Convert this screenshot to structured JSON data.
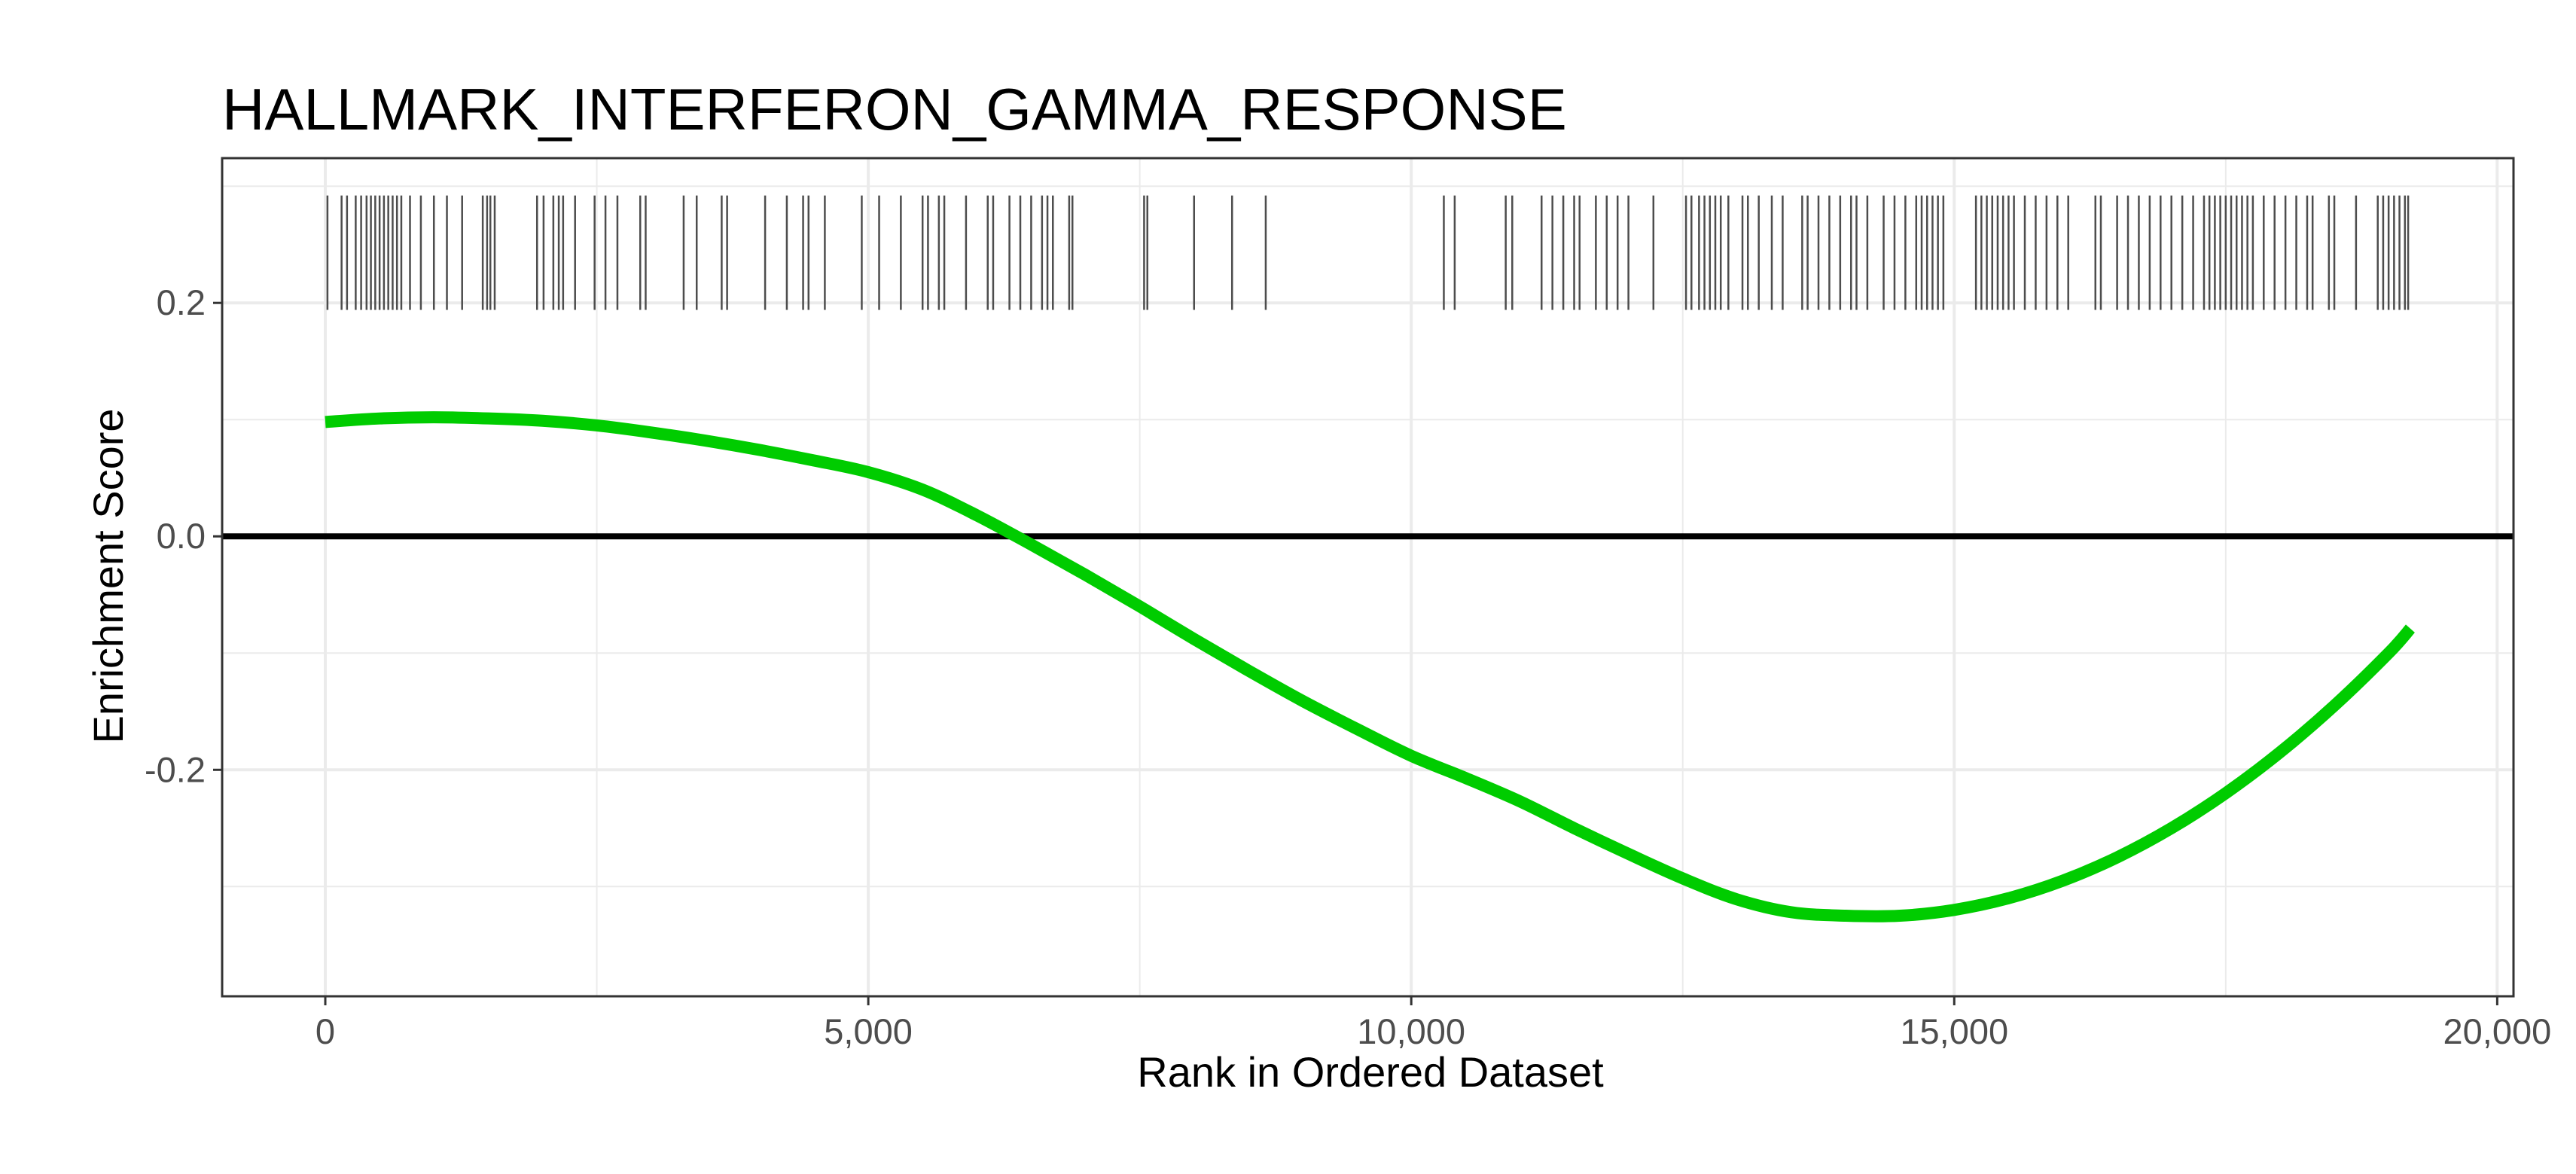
{
  "chart_data": {
    "type": "line",
    "title": "HALLMARK_INTERFERON_GAMMA_RESPONSE",
    "xlabel": "Rank in Ordered Dataset",
    "ylabel": "Enrichment Score",
    "xlim": [
      -950,
      20150
    ],
    "ylim": [
      -0.394,
      0.324
    ],
    "x_ticks": [
      0,
      5000,
      10000,
      15000,
      20000
    ],
    "x_tick_labels": [
      "0",
      "5,000",
      "10,000",
      "15,000",
      "20,000"
    ],
    "y_ticks": [
      0.2,
      0.0,
      -0.2
    ],
    "y_tick_labels": [
      "0.2",
      "0.0",
      "-0.2"
    ],
    "grid": true,
    "zero_line": 0,
    "colors": {
      "curve": "#00cc00",
      "zero_line": "#000000",
      "gene_ticks": "#4d4d4d",
      "grid": "#ebebeb",
      "panel_border": "#333333"
    },
    "series": [
      {
        "x": [
          0,
          500,
          1000,
          1500,
          2000,
          2500,
          3000,
          3500,
          4000,
          4500,
          5000,
          5500,
          6000,
          6500,
          7000,
          7500,
          8000,
          8500,
          9000,
          9500,
          10000,
          10500,
          11000,
          11500,
          12000,
          12500,
          13000,
          13500,
          14000,
          14500,
          15000,
          15500,
          16000,
          16500,
          17000,
          17500,
          18000,
          18500,
          19000,
          19200
        ],
        "y": [
          0.098,
          0.101,
          0.102,
          0.101,
          0.099,
          0.095,
          0.089,
          0.082,
          0.074,
          0.065,
          0.055,
          0.04,
          0.018,
          -0.007,
          -0.033,
          -0.06,
          -0.088,
          -0.115,
          -0.141,
          -0.165,
          -0.188,
          -0.207,
          -0.227,
          -0.25,
          -0.272,
          -0.293,
          -0.311,
          -0.322,
          -0.325,
          -0.325,
          -0.32,
          -0.31,
          -0.295,
          -0.275,
          -0.25,
          -0.22,
          -0.185,
          -0.145,
          -0.1,
          -0.079
        ]
      }
    ],
    "gene_hits": [
      20,
      150,
      200,
      280,
      330,
      380,
      420,
      460,
      500,
      540,
      580,
      620,
      660,
      700,
      780,
      880,
      1000,
      1120,
      1260,
      1450,
      1490,
      1520,
      1560,
      1950,
      2010,
      2100,
      2150,
      2190,
      2300,
      2480,
      2580,
      2690,
      2900,
      2950,
      3300,
      3420,
      3650,
      3700,
      4050,
      4250,
      4400,
      4450,
      4600,
      4940,
      5100,
      5300,
      5500,
      5550,
      5650,
      5700,
      5900,
      6100,
      6150,
      6300,
      6400,
      6500,
      6600,
      6650,
      6700,
      6850,
      6880,
      7540,
      7570,
      8000,
      8350,
      8660,
      10300,
      10400,
      10870,
      10930,
      11200,
      11300,
      11400,
      11500,
      11550,
      11700,
      11800,
      11900,
      12000,
      12230,
      12530,
      12580,
      12650,
      12700,
      12750,
      12800,
      12850,
      12920,
      13050,
      13100,
      13200,
      13320,
      13420,
      13600,
      13650,
      13750,
      13850,
      13950,
      14050,
      14100,
      14200,
      14350,
      14450,
      14550,
      14650,
      14700,
      14750,
      14800,
      14850,
      14900,
      15200,
      15250,
      15300,
      15350,
      15400,
      15450,
      15500,
      15550,
      15650,
      15750,
      15850,
      15950,
      16050,
      16300,
      16350,
      16500,
      16600,
      16700,
      16800,
      16900,
      17000,
      17100,
      17200,
      17300,
      17350,
      17400,
      17450,
      17500,
      17550,
      17600,
      17650,
      17700,
      17750,
      17850,
      17950,
      18050,
      18150,
      18250,
      18300,
      18450,
      18500,
      18700,
      18900,
      18950,
      19000,
      19050,
      19100,
      19150,
      19180
    ],
    "gene_tick_range": [
      0.194,
      0.292
    ]
  }
}
